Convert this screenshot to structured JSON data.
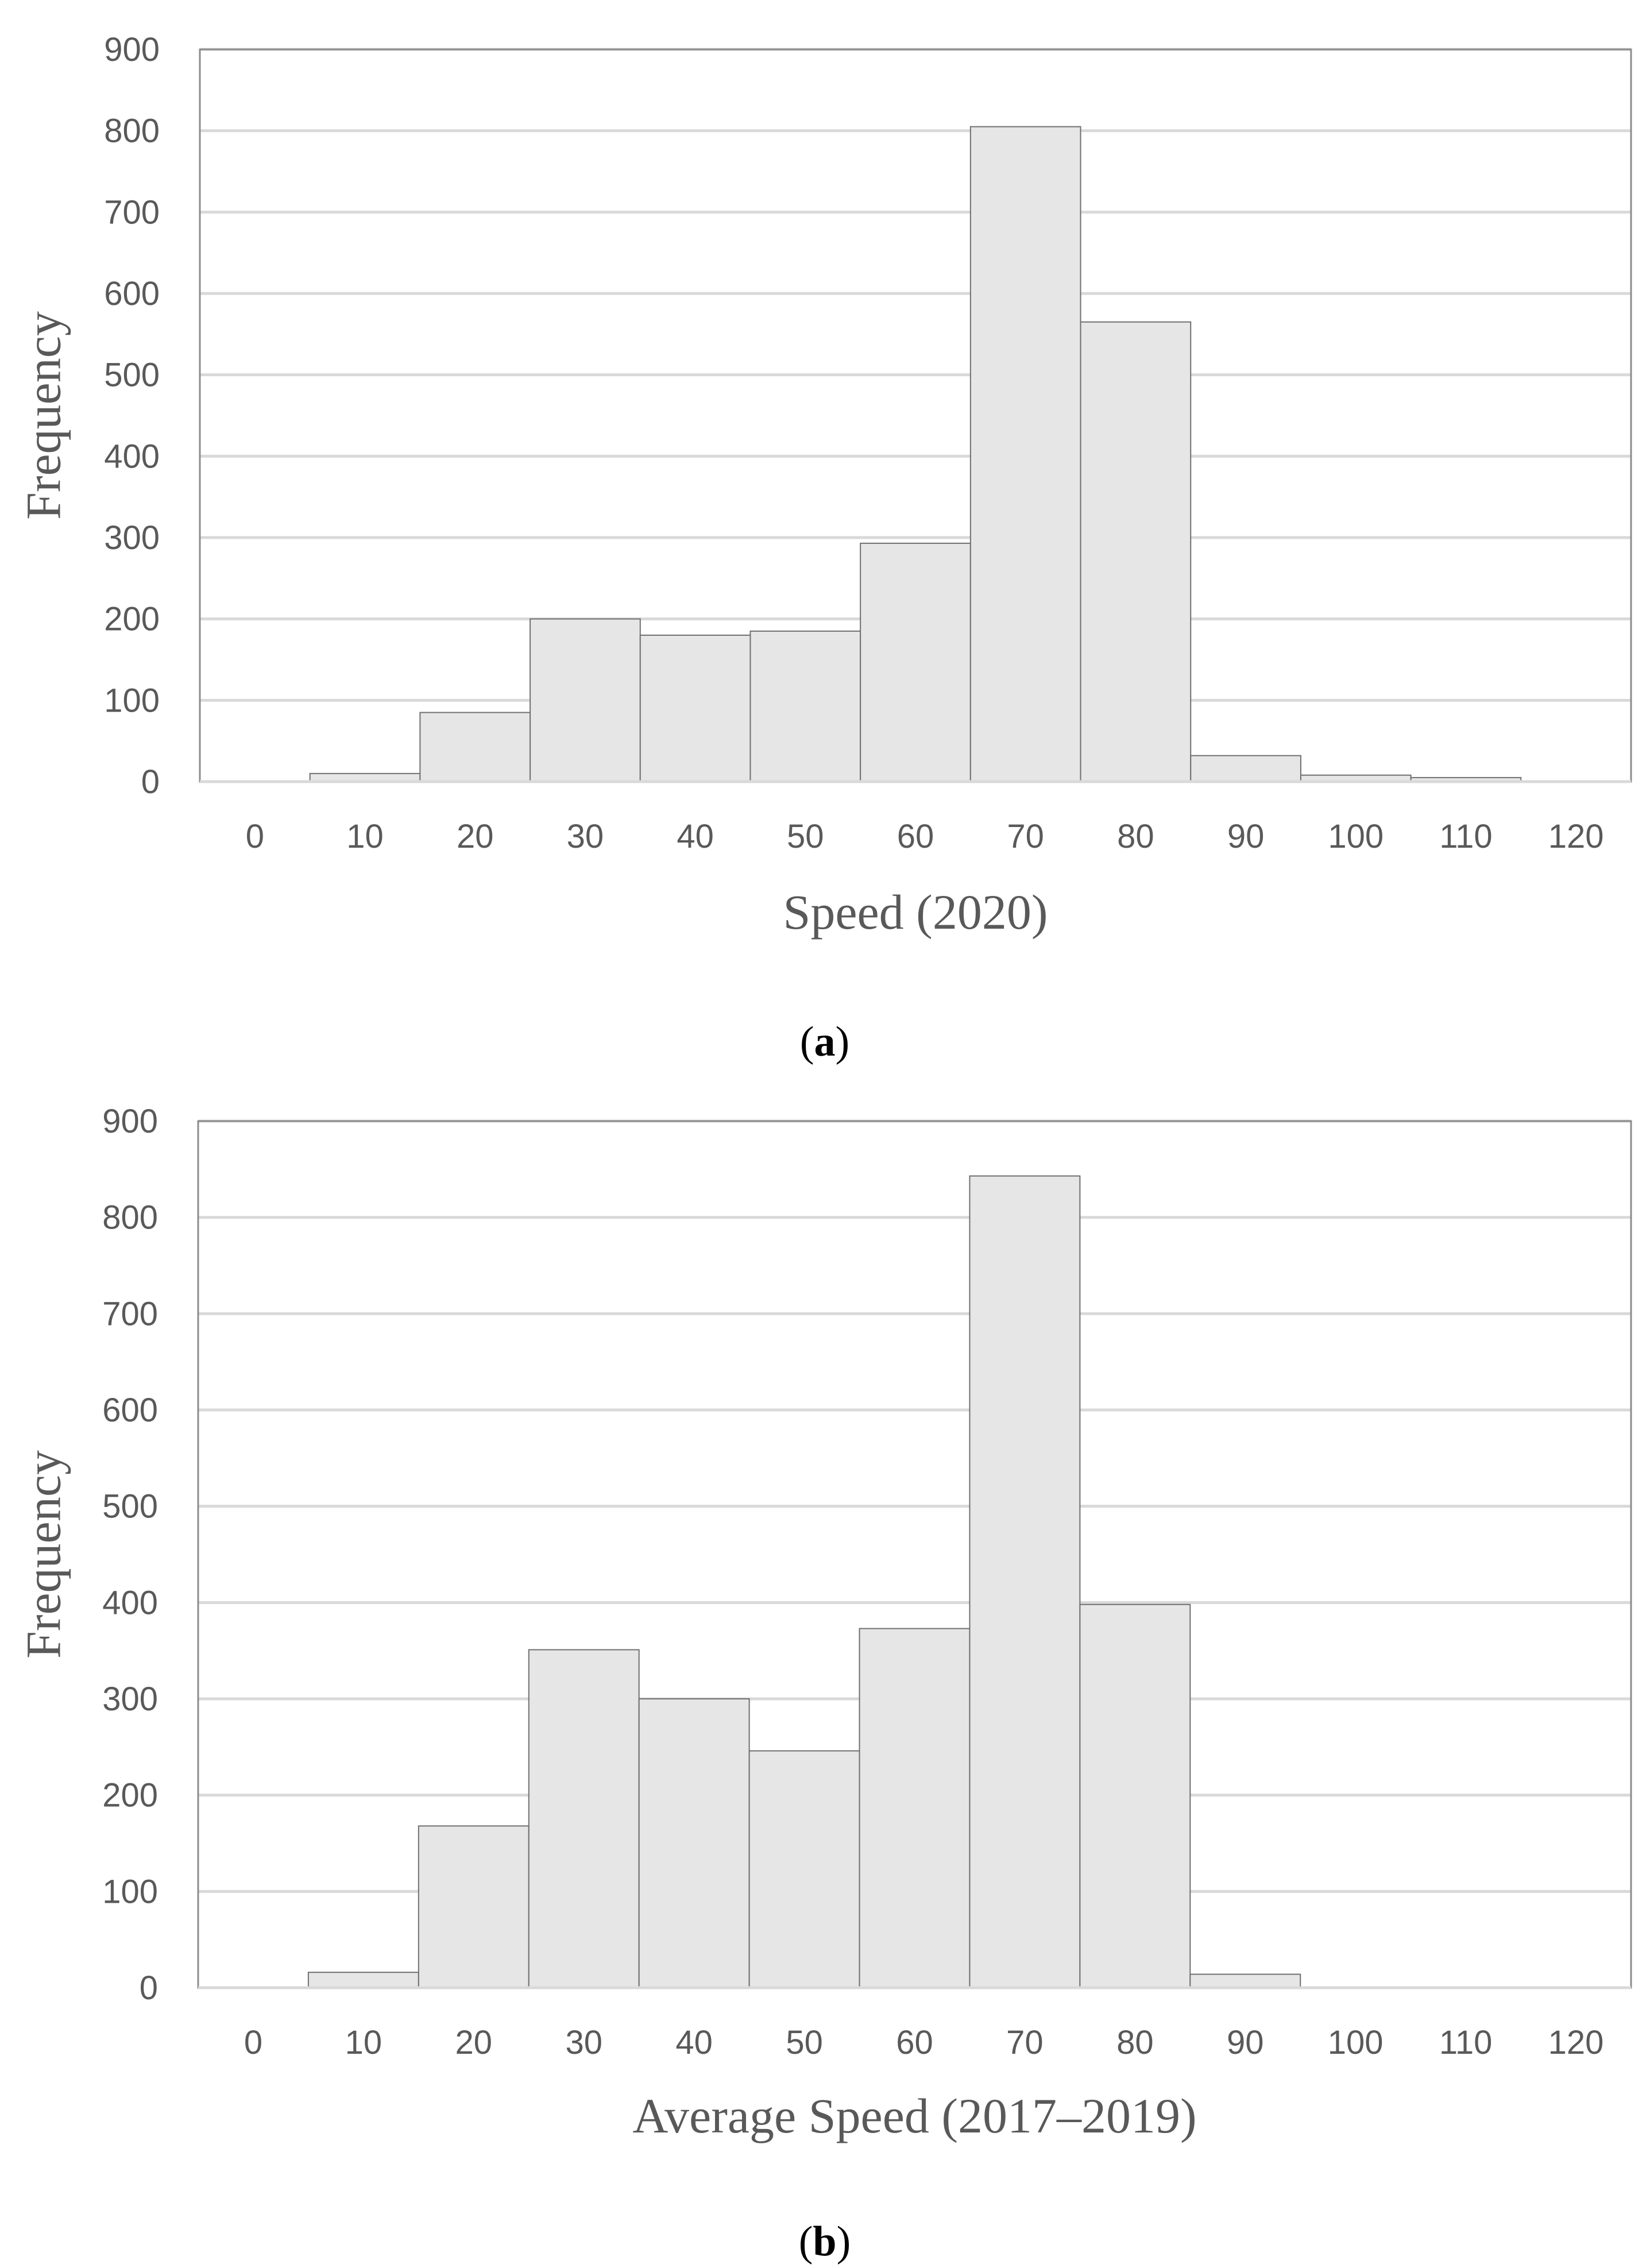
{
  "colors": {
    "bar_fill": "#e6e6e6",
    "bar_stroke": "#707070",
    "grid": "#d9d9d9",
    "plot_border": "#8c8c8c",
    "text": "#595959"
  },
  "chart_data": [
    {
      "type": "bar",
      "panel_label": "a",
      "xlabel": "Speed (2020)",
      "ylabel": "Frequency",
      "ylim": [
        0,
        900
      ],
      "yticks": [
        0,
        100,
        200,
        300,
        400,
        500,
        600,
        700,
        800,
        900
      ],
      "categories": [
        "0",
        "10",
        "20",
        "30",
        "40",
        "50",
        "60",
        "70",
        "80",
        "90",
        "100",
        "110",
        "120"
      ],
      "values": [
        0,
        10,
        85,
        200,
        180,
        185,
        293,
        805,
        565,
        32,
        8,
        5,
        0
      ],
      "grid": true,
      "legend": "none"
    },
    {
      "type": "bar",
      "panel_label": "b",
      "xlabel": "Average Speed (2017–2019)",
      "ylabel": "Frequency",
      "ylim": [
        0,
        900
      ],
      "yticks": [
        0,
        100,
        200,
        300,
        400,
        500,
        600,
        700,
        800,
        900
      ],
      "categories": [
        "0",
        "10",
        "20",
        "30",
        "40",
        "50",
        "60",
        "70",
        "80",
        "90",
        "100",
        "110",
        "120"
      ],
      "values": [
        0,
        16,
        168,
        351,
        300,
        246,
        373,
        843,
        398,
        14,
        0,
        0,
        0
      ],
      "grid": true,
      "legend": "none"
    }
  ]
}
